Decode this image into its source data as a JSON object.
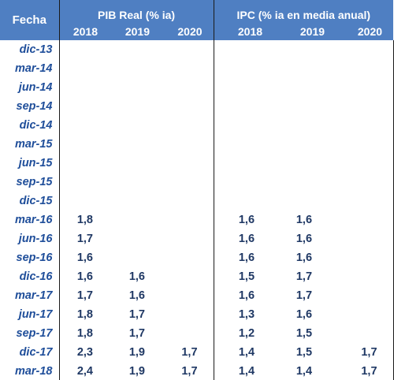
{
  "header": {
    "fecha_label": "Fecha",
    "pib_label": "PIB Real  (% ia)",
    "ipc_label": "IPC (% ia en media anual)",
    "years": [
      "2018",
      "2019",
      "2020"
    ]
  },
  "rows": [
    {
      "fecha": "dic-13",
      "pib": [
        "",
        "",
        ""
      ],
      "ipc": [
        "",
        "",
        ""
      ]
    },
    {
      "fecha": "mar-14",
      "pib": [
        "",
        "",
        ""
      ],
      "ipc": [
        "",
        "",
        ""
      ]
    },
    {
      "fecha": "jun-14",
      "pib": [
        "",
        "",
        ""
      ],
      "ipc": [
        "",
        "",
        ""
      ]
    },
    {
      "fecha": "sep-14",
      "pib": [
        "",
        "",
        ""
      ],
      "ipc": [
        "",
        "",
        ""
      ]
    },
    {
      "fecha": "dic-14",
      "pib": [
        "",
        "",
        ""
      ],
      "ipc": [
        "",
        "",
        ""
      ]
    },
    {
      "fecha": "mar-15",
      "pib": [
        "",
        "",
        ""
      ],
      "ipc": [
        "",
        "",
        ""
      ]
    },
    {
      "fecha": "jun-15",
      "pib": [
        "",
        "",
        ""
      ],
      "ipc": [
        "",
        "",
        ""
      ]
    },
    {
      "fecha": "sep-15",
      "pib": [
        "",
        "",
        ""
      ],
      "ipc": [
        "",
        "",
        ""
      ]
    },
    {
      "fecha": "dic-15",
      "pib": [
        "",
        "",
        ""
      ],
      "ipc": [
        "",
        "",
        ""
      ]
    },
    {
      "fecha": "mar-16",
      "pib": [
        "1,8",
        "",
        ""
      ],
      "ipc": [
        "1,6",
        "1,6",
        ""
      ]
    },
    {
      "fecha": "jun-16",
      "pib": [
        "1,7",
        "",
        ""
      ],
      "ipc": [
        "1,6",
        "1,6",
        ""
      ]
    },
    {
      "fecha": "sep-16",
      "pib": [
        "1,6",
        "",
        ""
      ],
      "ipc": [
        "1,6",
        "1,6",
        ""
      ]
    },
    {
      "fecha": "dic-16",
      "pib": [
        "1,6",
        "1,6",
        ""
      ],
      "ipc": [
        "1,5",
        "1,7",
        ""
      ]
    },
    {
      "fecha": "mar-17",
      "pib": [
        "1,7",
        "1,6",
        ""
      ],
      "ipc": [
        "1,6",
        "1,7",
        ""
      ]
    },
    {
      "fecha": "jun-17",
      "pib": [
        "1,8",
        "1,7",
        ""
      ],
      "ipc": [
        "1,3",
        "1,6",
        ""
      ]
    },
    {
      "fecha": "sep-17",
      "pib": [
        "1,8",
        "1,7",
        ""
      ],
      "ipc": [
        "1,2",
        "1,5",
        ""
      ]
    },
    {
      "fecha": "dic-17",
      "pib": [
        "2,3",
        "1,9",
        "1,7"
      ],
      "ipc": [
        "1,4",
        "1,5",
        "1,7"
      ]
    },
    {
      "fecha": "mar-18",
      "pib": [
        "2,4",
        "1,9",
        "1,7"
      ],
      "ipc": [
        "1,4",
        "1,4",
        "1,7"
      ]
    }
  ]
}
